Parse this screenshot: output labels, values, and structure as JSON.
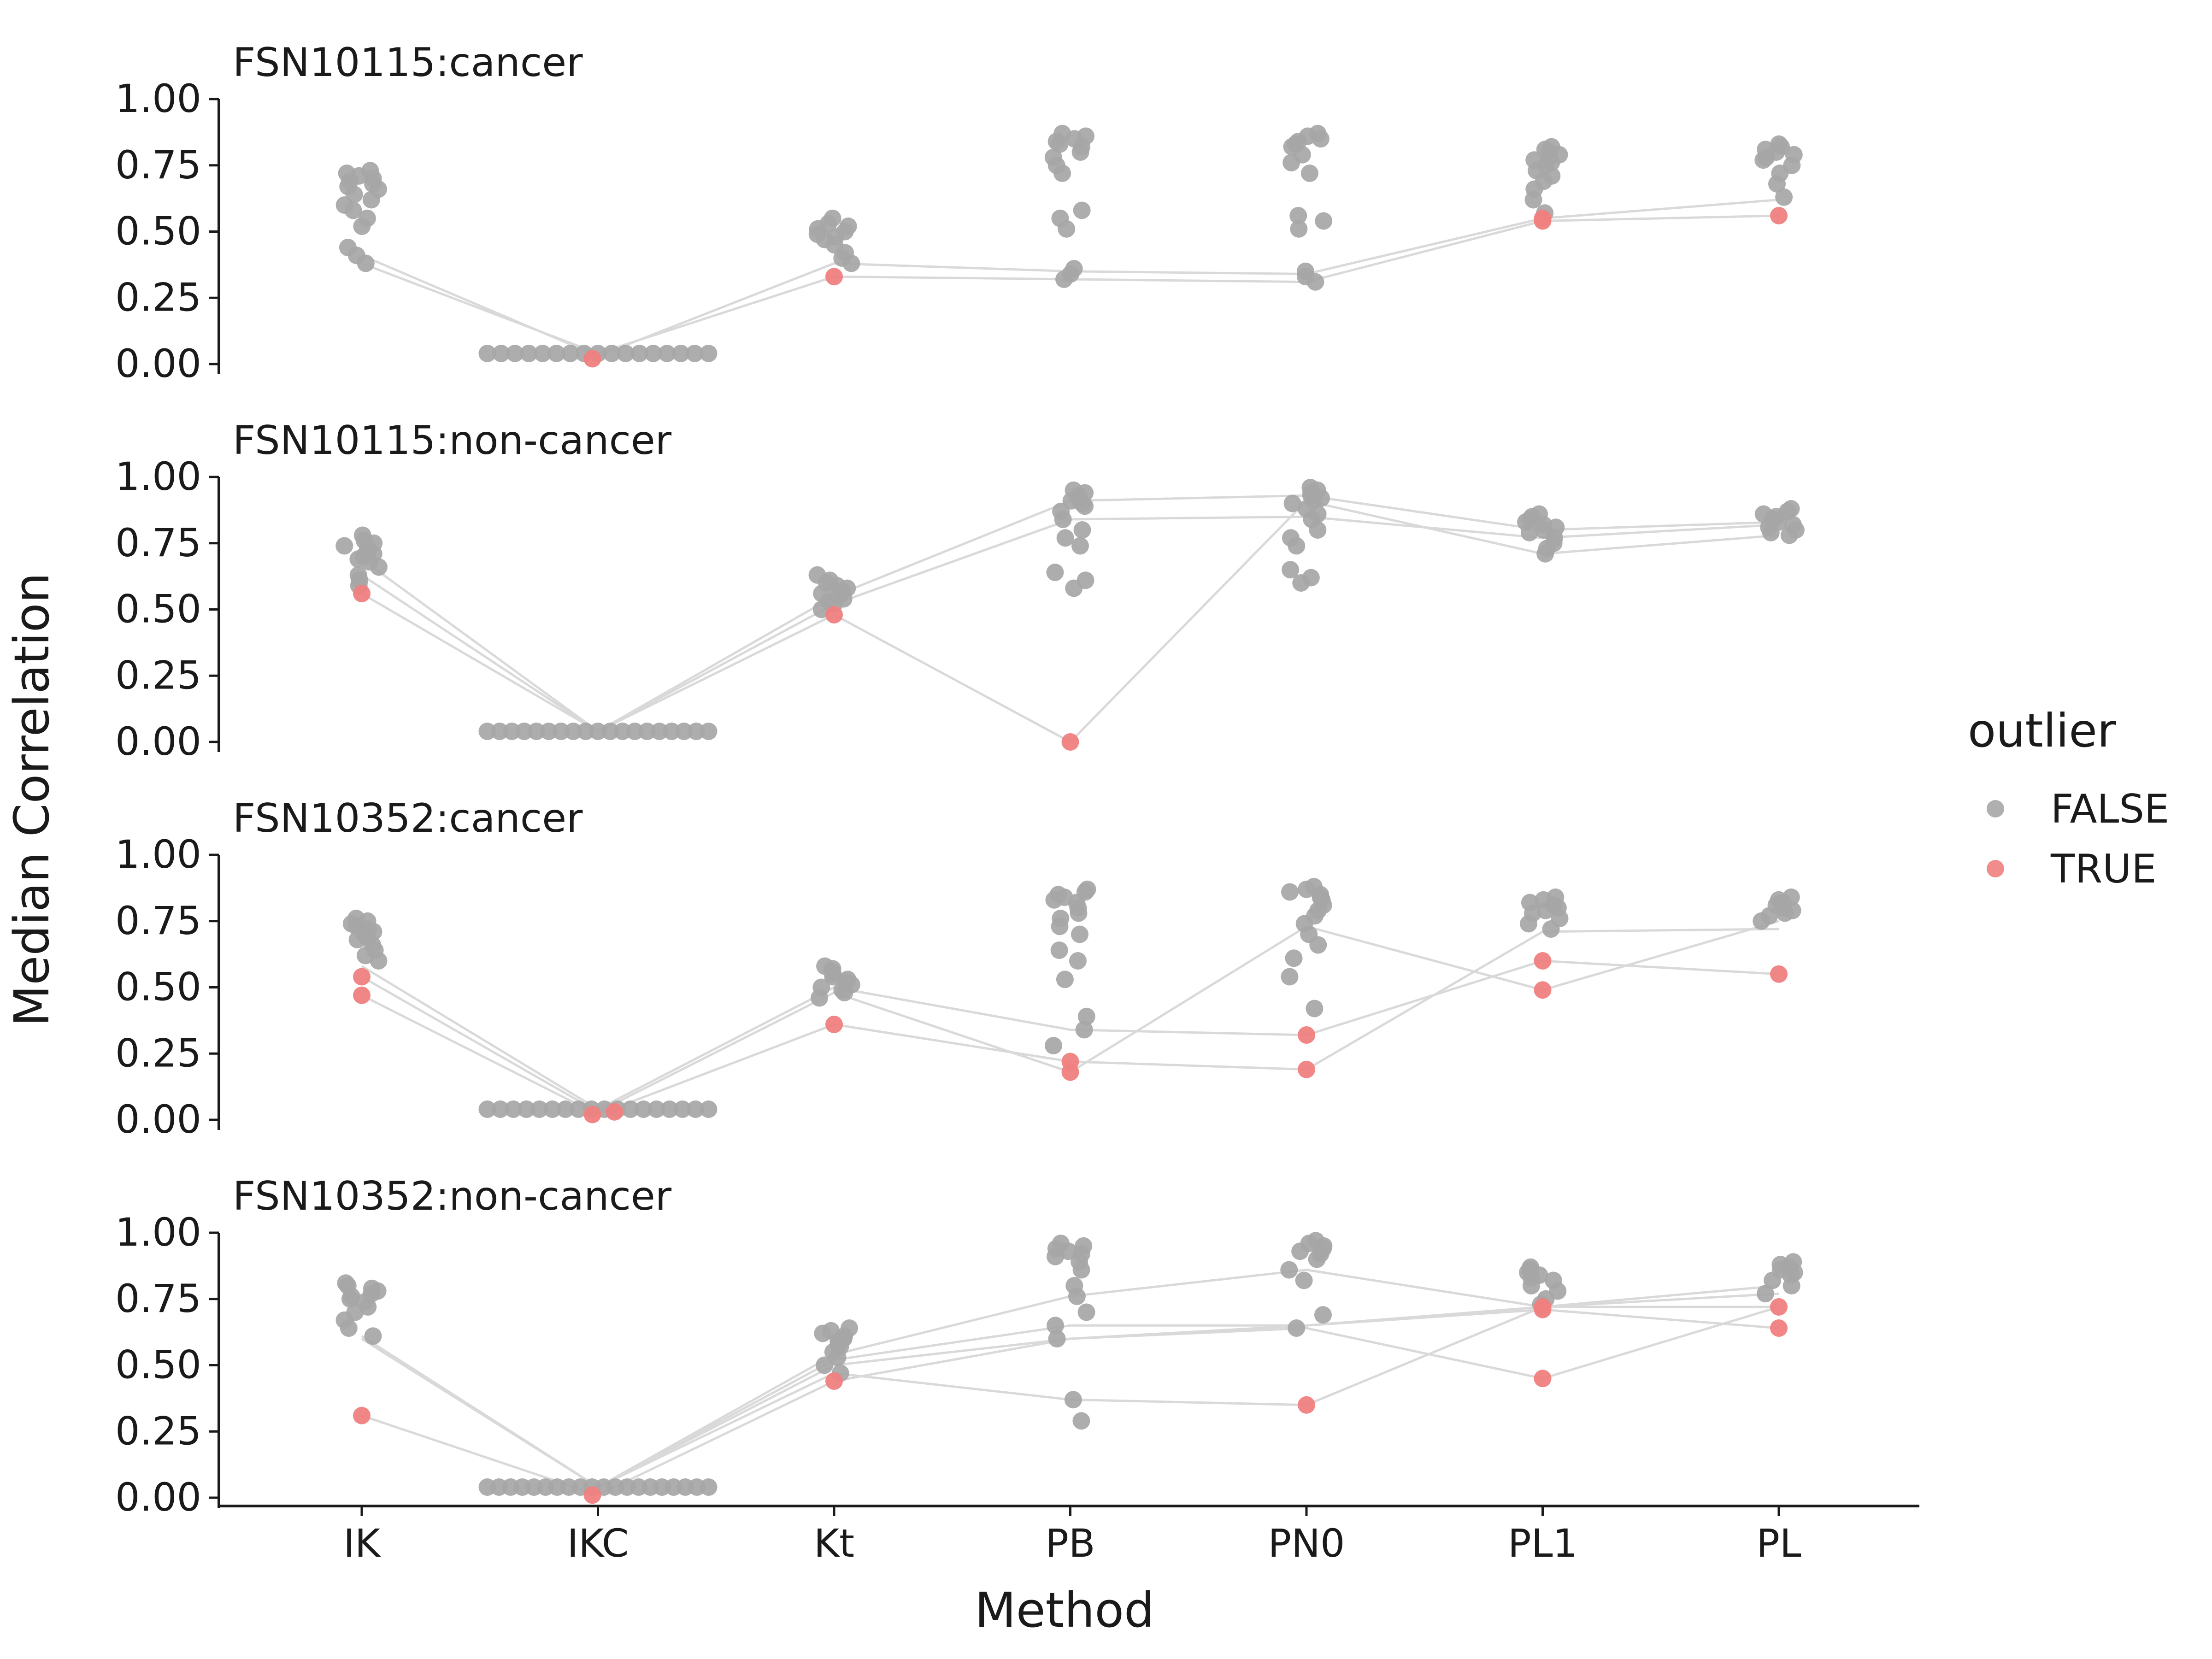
{
  "chart_data": {
    "type": "scatter",
    "xlabel": "Method",
    "ylabel": "Median Correlation",
    "categories": [
      "IK",
      "IKC",
      "Kt",
      "PB",
      "PN0",
      "PL1",
      "PL"
    ],
    "ylim": [
      0,
      1
    ],
    "yticks": [
      "0.00",
      "0.25",
      "0.50",
      "0.75",
      "1.00"
    ],
    "grid": false,
    "legend": {
      "title": "outlier",
      "position": "right",
      "items": [
        {
          "label": "FALSE",
          "color": "#a6a6a6"
        },
        {
          "label": "TRUE",
          "color": "#f08080"
        }
      ]
    },
    "colors": {
      "false_point": "#a6a6a6",
      "true_point": "#f08080",
      "line": "#d9d9d9",
      "axis": "#1a1a1a"
    },
    "panels": [
      {
        "title": "FSN10115:cancer",
        "false_points": {
          "IK": [
            0.73,
            0.72,
            0.71,
            0.7,
            0.69,
            0.68,
            0.67,
            0.66,
            0.64,
            0.62,
            0.6,
            0.58,
            0.55,
            0.52,
            0.44,
            0.41,
            0.38
          ],
          "IKC": [
            0.04,
            0.04,
            0.04,
            0.04,
            0.04,
            0.04,
            0.04,
            0.04,
            0.04,
            0.04,
            0.04,
            0.04,
            0.04,
            0.04,
            0.04,
            0.04,
            0.04
          ],
          "Kt": [
            0.55,
            0.53,
            0.52,
            0.51,
            0.5,
            0.49,
            0.48,
            0.47,
            0.45,
            0.42,
            0.4,
            0.38
          ],
          "PB": [
            0.87,
            0.86,
            0.85,
            0.84,
            0.83,
            0.82,
            0.8,
            0.78,
            0.75,
            0.72,
            0.58,
            0.55,
            0.51,
            0.36,
            0.34,
            0.32
          ],
          "PN0": [
            0.87,
            0.86,
            0.85,
            0.84,
            0.83,
            0.82,
            0.79,
            0.76,
            0.72,
            0.56,
            0.54,
            0.51,
            0.35,
            0.33,
            0.31
          ],
          "PL1": [
            0.82,
            0.81,
            0.8,
            0.79,
            0.78,
            0.77,
            0.76,
            0.75,
            0.73,
            0.71,
            0.69,
            0.66,
            0.62,
            0.57
          ],
          "PL": [
            0.83,
            0.82,
            0.81,
            0.8,
            0.79,
            0.78,
            0.77,
            0.75,
            0.72,
            0.68,
            0.63
          ]
        },
        "true_points": {
          "IKC": [
            0.02
          ],
          "Kt": [
            0.33
          ],
          "PL1": [
            0.54,
            0.55
          ],
          "PL": [
            0.56
          ]
        },
        "lines": [
          [
            0.41,
            0.03,
            0.38,
            0.35,
            0.34,
            0.55,
            0.62
          ],
          [
            0.38,
            0.04,
            0.33,
            0.32,
            0.31,
            0.54,
            0.56
          ]
        ]
      },
      {
        "title": "FSN10115:non-cancer",
        "false_points": {
          "IK": [
            0.78,
            0.76,
            0.75,
            0.74,
            0.73,
            0.72,
            0.71,
            0.7,
            0.69,
            0.68,
            0.66,
            0.63,
            0.61,
            0.59
          ],
          "IKC": [
            0.04,
            0.04,
            0.04,
            0.04,
            0.04,
            0.04,
            0.04,
            0.04,
            0.04,
            0.04,
            0.04,
            0.04,
            0.04,
            0.04,
            0.04,
            0.04,
            0.04,
            0.04,
            0.04
          ],
          "Kt": [
            0.63,
            0.61,
            0.6,
            0.59,
            0.58,
            0.57,
            0.56,
            0.55,
            0.54,
            0.53,
            0.52,
            0.5
          ],
          "PB": [
            0.95,
            0.94,
            0.93,
            0.92,
            0.91,
            0.9,
            0.89,
            0.87,
            0.84,
            0.8,
            0.77,
            0.74,
            0.64,
            0.61,
            0.58
          ],
          "PN0": [
            0.96,
            0.95,
            0.94,
            0.93,
            0.92,
            0.91,
            0.9,
            0.88,
            0.86,
            0.84,
            0.8,
            0.77,
            0.74,
            0.65,
            0.62,
            0.6
          ],
          "PL1": [
            0.86,
            0.85,
            0.84,
            0.83,
            0.82,
            0.81,
            0.8,
            0.79,
            0.77,
            0.75,
            0.73,
            0.71
          ],
          "PL": [
            0.88,
            0.87,
            0.86,
            0.85,
            0.84,
            0.83,
            0.82,
            0.81,
            0.8,
            0.79,
            0.78
          ]
        },
        "true_points": {
          "IK": [
            0.56
          ],
          "Kt": [
            0.48
          ],
          "PB": [
            0.0
          ]
        },
        "lines": [
          [
            0.69,
            0.04,
            0.55,
            0.91,
            0.93,
            0.8,
            0.83
          ],
          [
            0.63,
            0.04,
            0.52,
            0.84,
            0.85,
            0.77,
            0.82
          ],
          [
            0.56,
            0.04,
            0.48,
            0.0,
            0.91,
            0.71,
            0.78
          ]
        ]
      },
      {
        "title": "FSN10352:cancer",
        "false_points": {
          "IK": [
            0.76,
            0.75,
            0.74,
            0.73,
            0.72,
            0.71,
            0.7,
            0.69,
            0.68,
            0.66,
            0.64,
            0.62,
            0.6
          ],
          "IKC": [
            0.04,
            0.04,
            0.04,
            0.04,
            0.04,
            0.04,
            0.04,
            0.04,
            0.04,
            0.04,
            0.04,
            0.04,
            0.04,
            0.04,
            0.04,
            0.04,
            0.04,
            0.04
          ],
          "Kt": [
            0.58,
            0.57,
            0.56,
            0.55,
            0.54,
            0.53,
            0.52,
            0.51,
            0.5,
            0.49,
            0.48,
            0.46
          ],
          "PB": [
            0.87,
            0.86,
            0.85,
            0.84,
            0.83,
            0.82,
            0.8,
            0.78,
            0.76,
            0.73,
            0.7,
            0.64,
            0.6,
            0.53,
            0.39,
            0.34,
            0.28
          ],
          "PN0": [
            0.88,
            0.87,
            0.86,
            0.85,
            0.84,
            0.83,
            0.81,
            0.79,
            0.77,
            0.74,
            0.7,
            0.66,
            0.61,
            0.54,
            0.42
          ],
          "PL1": [
            0.84,
            0.83,
            0.82,
            0.81,
            0.8,
            0.79,
            0.78,
            0.76,
            0.74,
            0.72
          ],
          "PL": [
            0.84,
            0.83,
            0.82,
            0.81,
            0.8,
            0.79,
            0.78,
            0.77,
            0.75
          ]
        },
        "true_points": {
          "IK": [
            0.54,
            0.47
          ],
          "IKC": [
            0.02,
            0.03
          ],
          "Kt": [
            0.36
          ],
          "PB": [
            0.22,
            0.18
          ],
          "PN0": [
            0.32,
            0.19
          ],
          "PL1": [
            0.6,
            0.49
          ],
          "PL": [
            0.55
          ]
        },
        "lines": [
          [
            0.58,
            0.04,
            0.5,
            0.34,
            0.32,
            0.6,
            0.55
          ],
          [
            0.54,
            0.03,
            0.48,
            0.18,
            0.73,
            0.49,
            0.75
          ],
          [
            0.47,
            0.02,
            0.36,
            0.22,
            0.19,
            0.71,
            0.72
          ]
        ]
      },
      {
        "title": "FSN10352:non-cancer",
        "false_points": {
          "IK": [
            0.81,
            0.8,
            0.79,
            0.78,
            0.77,
            0.76,
            0.75,
            0.74,
            0.72,
            0.7,
            0.67,
            0.64,
            0.61
          ],
          "IKC": [
            0.04,
            0.04,
            0.04,
            0.04,
            0.04,
            0.04,
            0.04,
            0.04,
            0.04,
            0.04,
            0.04,
            0.04,
            0.04,
            0.04,
            0.04,
            0.04,
            0.04,
            0.04,
            0.04,
            0.04
          ],
          "Kt": [
            0.64,
            0.63,
            0.62,
            0.61,
            0.6,
            0.59,
            0.58,
            0.57,
            0.55,
            0.53,
            0.5,
            0.47
          ],
          "PB": [
            0.96,
            0.95,
            0.94,
            0.93,
            0.92,
            0.91,
            0.89,
            0.86,
            0.8,
            0.76,
            0.7,
            0.65,
            0.6,
            0.37,
            0.29
          ],
          "PN0": [
            0.97,
            0.96,
            0.95,
            0.94,
            0.93,
            0.92,
            0.9,
            0.86,
            0.82,
            0.69,
            0.64
          ],
          "PL1": [
            0.87,
            0.86,
            0.85,
            0.84,
            0.83,
            0.82,
            0.8,
            0.78,
            0.75,
            0.73
          ],
          "PL": [
            0.89,
            0.88,
            0.87,
            0.86,
            0.85,
            0.84,
            0.82,
            0.8,
            0.77
          ]
        },
        "true_points": {
          "IK": [
            0.31
          ],
          "IKC": [
            0.01
          ],
          "Kt": [
            0.44
          ],
          "PN0": [
            0.35
          ],
          "PL1": [
            0.72,
            0.71,
            0.45
          ],
          "PL": [
            0.72,
            0.64
          ]
        },
        "lines": [
          [
            0.61,
            0.04,
            0.54,
            0.76,
            0.86,
            0.72,
            0.8
          ],
          [
            0.6,
            0.04,
            0.52,
            0.65,
            0.65,
            0.72,
            0.77
          ],
          [
            0.6,
            0.04,
            0.5,
            0.6,
            0.64,
            0.45,
            0.72
          ],
          [
            0.6,
            0.04,
            0.47,
            0.37,
            0.35,
            0.72,
            0.72
          ],
          [
            0.31,
            0.01,
            0.44,
            0.6,
            0.65,
            0.71,
            0.64
          ]
        ]
      }
    ]
  }
}
